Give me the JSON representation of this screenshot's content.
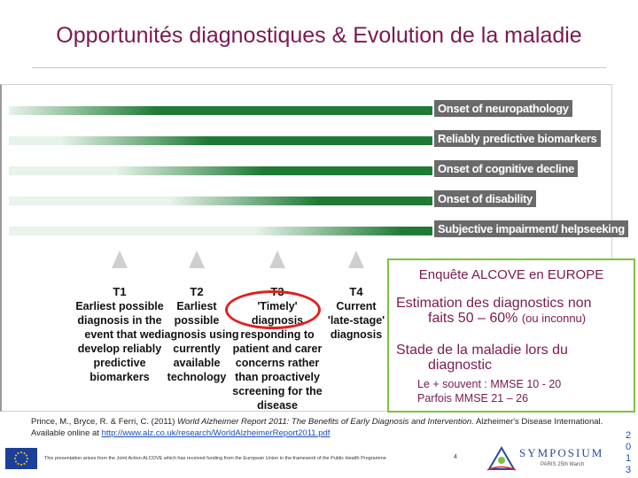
{
  "title": "Opportunités diagnostiques & Evolution de la maladie",
  "figure": {
    "bars": [
      {
        "label": "Onset of neuropathology",
        "start": 0.0
      },
      {
        "label": "Reliably predictive biomarkers",
        "start": 0.12
      },
      {
        "label": "Onset of cognitive decline",
        "start": 0.25
      },
      {
        "label": "Onset of disability",
        "start": 0.38
      },
      {
        "label": "Subjective impairment/ helpseeking",
        "start": 0.58
      }
    ],
    "timepoints": [
      {
        "id": "T1",
        "text": [
          "Earliest possible",
          "diagnosis in the",
          "event that we",
          "develop reliably",
          "predictive",
          "biomarkers"
        ]
      },
      {
        "id": "T2",
        "text": [
          "Earliest",
          "possible",
          "diagnosis using",
          "currently",
          "available",
          "technology"
        ]
      },
      {
        "id": "T3",
        "text": [
          "'Timely' diagnosis",
          "responding to",
          "patient and carer",
          "concerns rather",
          "than proactively",
          "screening for the",
          "disease"
        ]
      },
      {
        "id": "T4",
        "text": [
          "Current",
          "'late-stage'",
          "diagnosis"
        ]
      }
    ],
    "colors": {
      "bar_dark": "#1f7a35",
      "bar_light": "#e8f3ea",
      "label_bg": "#6a6a6a",
      "highlight": "#e02020"
    }
  },
  "overlay": {
    "title": "Enquête ALCOVE en  EUROPE",
    "estimation_line1": "Estimation des diagnostics non",
    "estimation_line2": "faits 50 – 60% ",
    "estimation_paren": "(ou inconnu)",
    "stage_line1": "Stade de la maladie lors du",
    "stage_line2": "diagnostic",
    "sub1": "Le + souvent : MMSE 10 - 20",
    "sub2": "Parfois MMSE 21 – 26",
    "color": "#7a1a52"
  },
  "citation": {
    "text": "Prince, M., Bryce, R. & Ferri, C. (2011) ",
    "italic": "World Alzheimer Report 2011: The Benefits of Early Diagnosis and Intervention.",
    "text2": " Alzheimer's Disease International. Available online at ",
    "link": "http://www.alz.co.uk/research/WorldAlzheimerReport2011.pdf"
  },
  "footer": {
    "note": "This presentation arises from the Joint Action ALCOVE which has received funding from the European Union in the framework of the Public Health Programme",
    "page_number": "4",
    "logo_text": "SYMPOSIUM",
    "logo_sub": "PARIS  25th March",
    "year_digits": [
      "2",
      "0",
      "1",
      "3"
    ]
  }
}
